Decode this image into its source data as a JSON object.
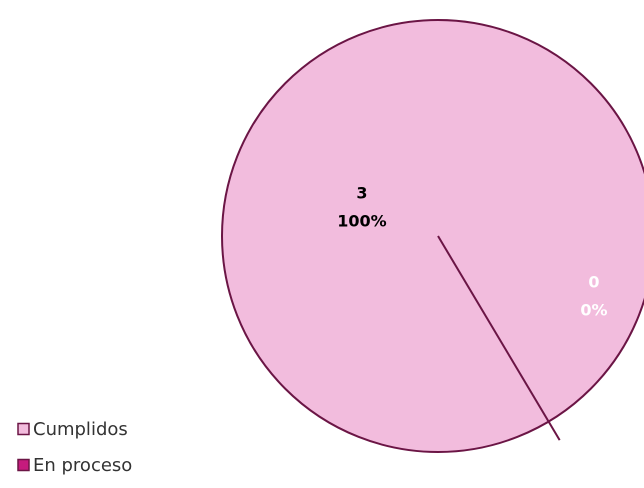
{
  "chart_data": {
    "type": "pie",
    "categories": [
      "Cumplidos",
      "En proceso"
    ],
    "values": [
      3,
      0
    ],
    "percentages": [
      100,
      0
    ],
    "percentage_labels": [
      "100%",
      "0%"
    ],
    "colors": [
      "#f2bcdd",
      "#c51b7d"
    ],
    "legend": "bottom-left"
  }
}
